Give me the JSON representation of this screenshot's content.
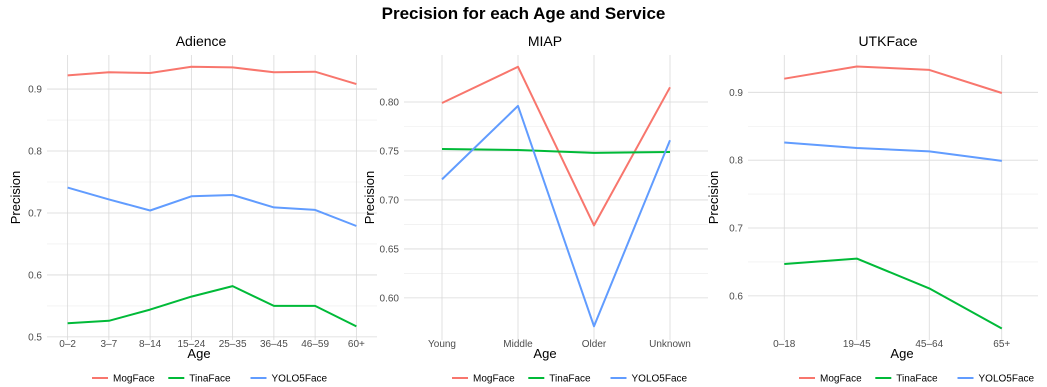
{
  "title": "Precision for each Age and Service",
  "colors": {
    "MogFace": "#F8766D",
    "TinaFace": "#00BA38",
    "YOLO5Face": "#619CFF"
  },
  "chart_data": [
    {
      "type": "line",
      "title": "Adience",
      "xlabel": "Age",
      "ylabel": "Precision",
      "categories": [
        "0–2",
        "3–7",
        "8–14",
        "15–24",
        "25–35",
        "36–45",
        "46–59",
        "60+"
      ],
      "ylim": [
        0.495,
        0.955
      ],
      "yticks": [
        0.5,
        0.6,
        0.7,
        0.8,
        0.9
      ],
      "ytick_labels": [
        "0.5",
        "0.6",
        "0.7",
        "0.8",
        "0.9"
      ],
      "grid": true,
      "legend": "bottom",
      "series": [
        {
          "name": "MogFace",
          "values": [
            0.922,
            0.927,
            0.926,
            0.936,
            0.935,
            0.927,
            0.928,
            0.908
          ]
        },
        {
          "name": "TinaFace",
          "values": [
            0.522,
            0.526,
            0.544,
            0.565,
            0.582,
            0.55,
            0.55,
            0.517
          ]
        },
        {
          "name": "YOLO5Face",
          "values": [
            0.741,
            0.722,
            0.704,
            0.727,
            0.729,
            0.709,
            0.705,
            0.679
          ]
        }
      ]
    },
    {
      "type": "line",
      "title": "MIAP",
      "xlabel": "Age",
      "ylabel": "Precision",
      "categories": [
        "Young",
        "Middle",
        "Older",
        "Unknown"
      ],
      "ylim": [
        0.557,
        0.848
      ],
      "yticks": [
        0.6,
        0.65,
        0.7,
        0.75,
        0.8
      ],
      "ytick_labels": [
        "0.60",
        "0.65",
        "0.70",
        "0.75",
        "0.80"
      ],
      "grid": true,
      "legend": "bottom",
      "series": [
        {
          "name": "MogFace",
          "values": [
            0.799,
            0.836,
            0.674,
            0.815
          ]
        },
        {
          "name": "TinaFace",
          "values": [
            0.752,
            0.751,
            0.748,
            0.749
          ]
        },
        {
          "name": "YOLO5Face",
          "values": [
            0.721,
            0.796,
            0.571,
            0.761
          ]
        }
      ]
    },
    {
      "type": "line",
      "title": "UTKFace",
      "xlabel": "Age",
      "ylabel": "Precision",
      "categories": [
        "0–18",
        "19–45",
        "45–64",
        "65+"
      ],
      "ylim": [
        0.535,
        0.955
      ],
      "yticks": [
        0.6,
        0.7,
        0.8,
        0.9
      ],
      "ytick_labels": [
        "0.6",
        "0.7",
        "0.8",
        "0.9"
      ],
      "grid": true,
      "legend": "bottom",
      "series": [
        {
          "name": "MogFace",
          "values": [
            0.92,
            0.938,
            0.933,
            0.899
          ]
        },
        {
          "name": "TinaFace",
          "values": [
            0.647,
            0.655,
            0.611,
            0.552
          ]
        },
        {
          "name": "YOLO5Face",
          "values": [
            0.826,
            0.818,
            0.813,
            0.799
          ]
        }
      ]
    }
  ]
}
